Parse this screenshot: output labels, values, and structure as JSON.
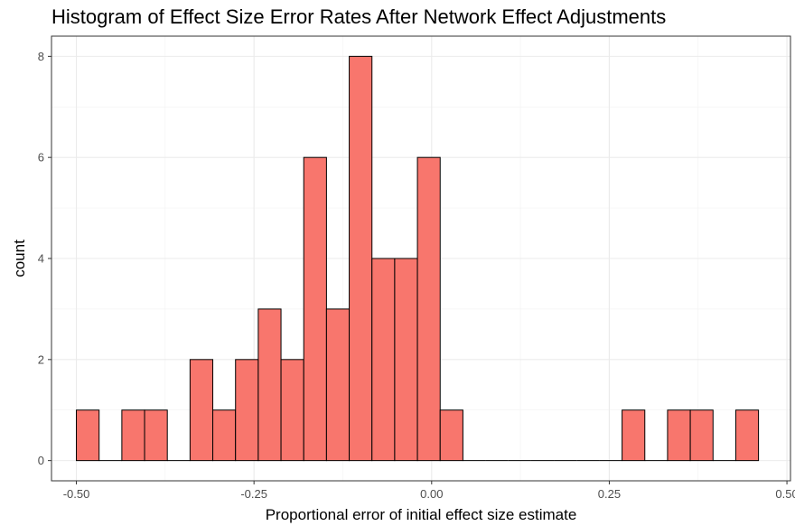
{
  "chart_data": {
    "type": "bar",
    "title": "Histogram of Effect Size Error Rates After Network Effect Adjustments",
    "xlabel": "Proportional error of initial effect size estimate",
    "ylabel": "count",
    "xlim": [
      -0.535,
      0.505
    ],
    "ylim": [
      -0.4,
      8.4
    ],
    "x_ticks": [
      -0.5,
      -0.25,
      0.0,
      0.25,
      0.5
    ],
    "x_tick_labels": [
      "-0.50",
      "-0.25",
      "0.00",
      "0.25",
      "0.50"
    ],
    "y_ticks": [
      0,
      2,
      4,
      6,
      8
    ],
    "y_tick_labels": [
      "0",
      "2",
      "4",
      "6",
      "8"
    ],
    "bin_width": 0.032,
    "bin_centers": [
      -0.484,
      -0.452,
      -0.42,
      -0.388,
      -0.356,
      -0.324,
      -0.292,
      -0.26,
      -0.228,
      -0.196,
      -0.164,
      -0.132,
      -0.1,
      -0.068,
      -0.036,
      -0.004,
      0.028,
      0.06,
      0.092,
      0.124,
      0.156,
      0.188,
      0.22,
      0.252,
      0.284,
      0.316,
      0.348,
      0.38,
      0.412,
      0.444
    ],
    "values": [
      1,
      0,
      1,
      1,
      0,
      2,
      1,
      2,
      3,
      2,
      6,
      3,
      8,
      4,
      4,
      6,
      1,
      0,
      0,
      0,
      0,
      0,
      0,
      0,
      1,
      0,
      1,
      1,
      0,
      1
    ],
    "fill_color": "#F8766D",
    "edge_color": "#000000",
    "grid": true,
    "theme": "bw"
  }
}
